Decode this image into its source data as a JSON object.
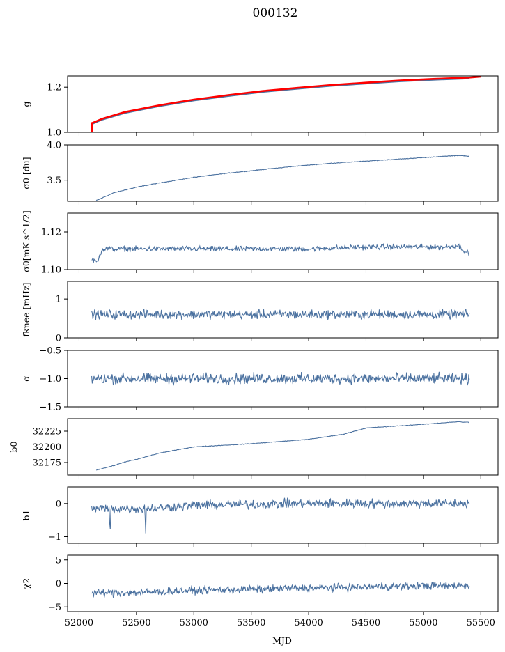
{
  "figure": {
    "title": "000132",
    "xlabel": "MJD"
  },
  "chart_data": {
    "type": "line",
    "title": "000132",
    "x_axis": {
      "label": "MJD",
      "range": [
        51900,
        55650
      ],
      "ticks": [
        52000,
        52500,
        53000,
        53500,
        54000,
        54500,
        55000,
        55500
      ],
      "tick_labels": [
        "52000",
        "52500",
        "53000",
        "53500",
        "54000",
        "54500",
        "55000",
        "55500"
      ]
    },
    "line_color": "#4c72a0",
    "highlight_color": "#ff0000",
    "grid": false,
    "panels": [
      {
        "id": "g",
        "ylabel": "g",
        "ylim": [
          1.0,
          1.25
        ],
        "yticks": [
          1.0,
          1.2
        ],
        "ytick_labels": [
          "1.0",
          "1.2"
        ],
        "series": [
          {
            "color": "#4c72a0",
            "x": [
              52110,
              52200,
              52400,
              52700,
              53000,
              53300,
              53600,
              53900,
              54200,
              54500,
              54800,
              55100,
              55400
            ],
            "y": [
              1.035,
              1.055,
              1.085,
              1.115,
              1.14,
              1.16,
              1.178,
              1.192,
              1.205,
              1.215,
              1.225,
              1.232,
              1.238
            ]
          },
          {
            "color": "#ff0000",
            "x": [
              52110,
              52200,
              52400,
              52700,
              53000,
              53300,
              53600,
              53900,
              54200,
              54500,
              54800,
              55100,
              55400,
              55500
            ],
            "y": [
              1.04,
              1.06,
              1.09,
              1.12,
              1.145,
              1.165,
              1.183,
              1.197,
              1.21,
              1.22,
              1.23,
              1.237,
              1.243,
              1.247
            ]
          }
        ],
        "spike": {
          "x": 52110,
          "y_from": 1.0,
          "y_to": 1.045,
          "color": "#ff0000"
        }
      },
      {
        "id": "sigma0_du",
        "ylabel": "σ0 [du]",
        "ylim": [
          3.2,
          4.0
        ],
        "yticks": [
          3.5,
          4.0
        ],
        "ytick_labels": [
          "3.5",
          "4.0"
        ],
        "trend": {
          "x": [
            52150,
            52300,
            52500,
            52700,
            53000,
            53300,
            53600,
            53900,
            54200,
            54500,
            54800,
            55100,
            55300,
            55400
          ],
          "y": [
            3.21,
            3.32,
            3.4,
            3.46,
            3.54,
            3.6,
            3.65,
            3.7,
            3.74,
            3.77,
            3.8,
            3.83,
            3.85,
            3.84
          ]
        },
        "noise": 0.004
      },
      {
        "id": "sigma0_mk",
        "ylabel": "σ0[mK s^1/2]",
        "ylim": [
          1.1,
          1.13
        ],
        "yticks": [
          1.1,
          1.12
        ],
        "ytick_labels": [
          "1.10",
          "1.12"
        ],
        "trend": {
          "x": [
            52110,
            52160,
            52200,
            52500,
            53000,
            53500,
            54000,
            54500,
            55000,
            55200,
            55300,
            55400
          ],
          "y": [
            1.105,
            1.104,
            1.111,
            1.111,
            1.111,
            1.111,
            1.111,
            1.112,
            1.112,
            1.112,
            1.113,
            1.108
          ]
        },
        "noise": 0.0012
      },
      {
        "id": "fknee",
        "ylabel": "fknee [mHz]",
        "ylim": [
          0,
          1.45
        ],
        "yticks": [
          0,
          1
        ],
        "ytick_labels": [
          "0",
          "1"
        ],
        "trend": {
          "x": [
            52110,
            55400
          ],
          "y": [
            0.6,
            0.6
          ]
        },
        "noise": 0.1
      },
      {
        "id": "alpha",
        "ylabel": "α",
        "ylim": [
          -1.5,
          -0.5
        ],
        "yticks": [
          -1.5,
          -1.0,
          -0.5
        ],
        "ytick_labels": [
          "−1.5",
          "−1.0",
          "−0.5"
        ],
        "trend": {
          "x": [
            52110,
            55400
          ],
          "y": [
            -1.0,
            -1.0
          ]
        },
        "noise": 0.08
      },
      {
        "id": "b0",
        "ylabel": "b0",
        "ylim": [
          32155,
          32245
        ],
        "yticks": [
          32175,
          32200,
          32225
        ],
        "ytick_labels": [
          "32175",
          "32200",
          "32225"
        ],
        "trend": {
          "x": [
            52150,
            52300,
            52400,
            52500,
            52600,
            52700,
            53000,
            53500,
            54000,
            54300,
            54500,
            55000,
            55300,
            55400
          ],
          "y": [
            32163,
            32170,
            32176,
            32180,
            32185,
            32190,
            32200,
            32205,
            32212,
            32220,
            32230,
            32236,
            32240,
            32239
          ]
        },
        "noise": 0.4
      },
      {
        "id": "b1",
        "ylabel": "b1",
        "ylim": [
          -1.2,
          0.5
        ],
        "yticks": [
          -1,
          0
        ],
        "ytick_labels": [
          "−1",
          "0"
        ],
        "trend": {
          "x": [
            52110,
            52600,
            53000,
            54000,
            55000,
            55400
          ],
          "y": [
            -0.15,
            -0.15,
            -0.05,
            0.0,
            0.0,
            0.0
          ]
        },
        "noise": 0.12,
        "dips": [
          {
            "x": 52270,
            "y": -1.08
          },
          {
            "x": 52580,
            "y": -1.0
          }
        ]
      },
      {
        "id": "chi2",
        "ylabel": "χ2",
        "ylim": [
          -6,
          6
        ],
        "yticks": [
          -5,
          0,
          5
        ],
        "ytick_labels": [
          "−5",
          "0",
          "5"
        ],
        "trend": {
          "x": [
            52110,
            52500,
            53000,
            54000,
            55000,
            55400
          ],
          "y": [
            -2.0,
            -2.0,
            -1.5,
            -1.0,
            -0.5,
            -0.5
          ]
        },
        "noise": 0.7
      }
    ]
  }
}
